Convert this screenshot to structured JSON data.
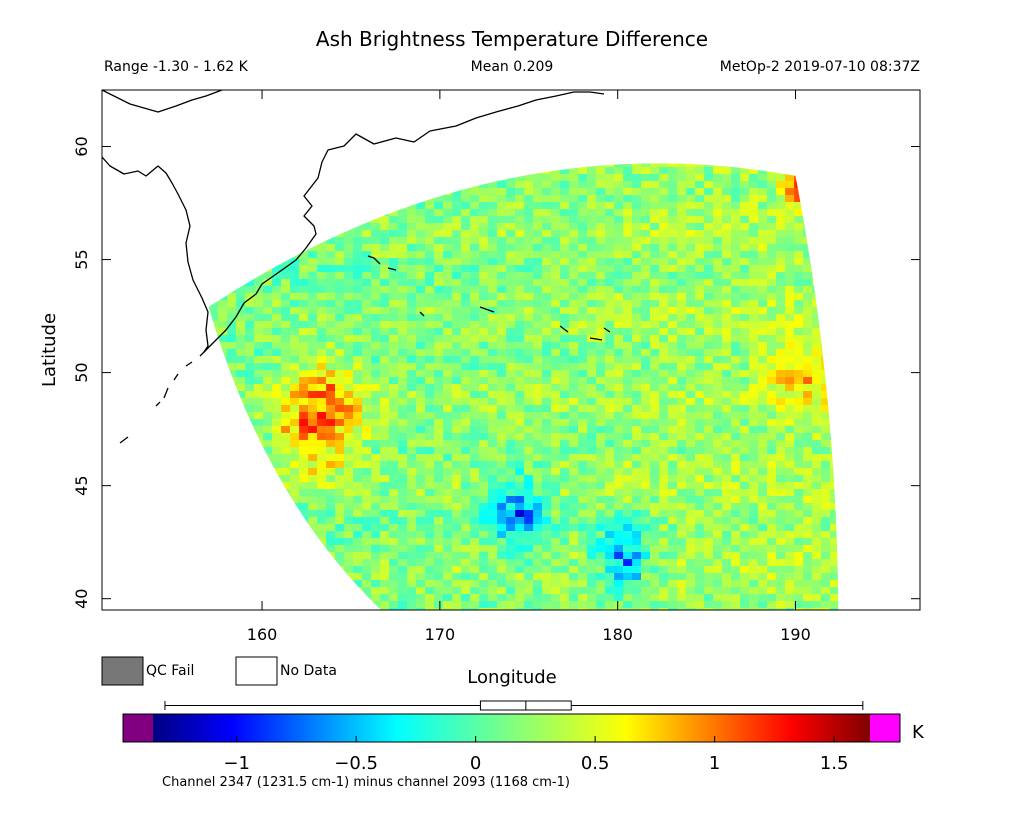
{
  "chart_data": {
    "type": "heatmap",
    "title": "Ash Brightness Temperature Difference",
    "header": {
      "range": "Range -1.30 - 1.62 K",
      "mean": "Mean 0.209",
      "source": "MetOp-2 2019-07-10 08:37Z"
    },
    "xlabel": "Longitude",
    "ylabel": "Latitude",
    "xlim": [
      151,
      197
    ],
    "ylim": [
      39.5,
      62.5
    ],
    "x_ticks": [
      "160",
      "170",
      "180",
      "190"
    ],
    "x_tick_values": [
      160,
      170,
      180,
      190
    ],
    "y_ticks": [
      "40",
      "45",
      "50",
      "55",
      "60"
    ],
    "y_tick_values": [
      40,
      45,
      50,
      55,
      60
    ],
    "swath": {
      "corners": {
        "northwest": [
          157,
          52.9
        ],
        "northeast": [
          190,
          58.7
        ],
        "southeast": [
          192.4,
          39.5
        ],
        "southwest": [
          166.7,
          39.5
        ]
      },
      "value_range": [
        -1.3,
        1.62
      ],
      "mean": 0.209,
      "features": [
        {
          "region": "Kamchatka coast near 48N 161E-165E",
          "value": 1.3
        },
        {
          "region": "eastern limb near 190E",
          "value": 0.8
        },
        {
          "region": "northeast corner near 58.5N 190E",
          "value": 1.6
        },
        {
          "region": "cluster near 44N 174E",
          "value": -0.8
        },
        {
          "region": "cluster near 42N 180E",
          "value": -0.8
        }
      ]
    },
    "legend": [
      {
        "label": "QC Fail",
        "color": "#777777"
      },
      {
        "label": "No Data",
        "color": "#ffffff"
      }
    ],
    "colorbar": {
      "unit": "K",
      "ticks": [
        "−1",
        "−0.5",
        "0",
        "0.5",
        "1",
        "1.5"
      ],
      "tick_values": [
        -1,
        -0.5,
        0,
        0.5,
        1,
        1.5
      ],
      "range": [
        -1.35,
        1.65
      ],
      "under_color": "#800080",
      "over_color": "#ff00ff",
      "box_stats": {
        "min": -1.3,
        "q1": 0.02,
        "median": 0.21,
        "q3": 0.4,
        "max": 1.62
      },
      "caption": "Channel 2347 (1231.5 cm-1) minus channel 2093 (1168 cm-1)"
    }
  }
}
